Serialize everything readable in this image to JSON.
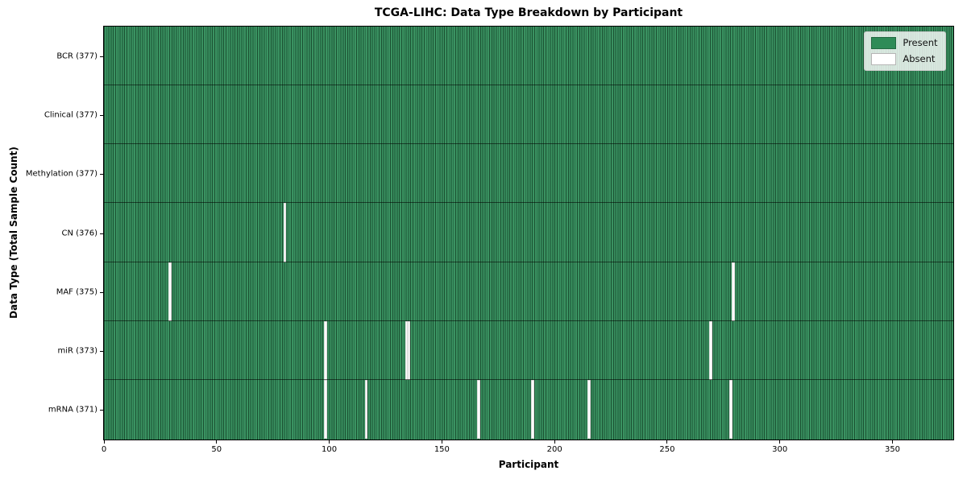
{
  "title": "TCGA-LIHC: Data Type Breakdown by Participant",
  "axes": {
    "xlabel": "Participant",
    "ylabel": "Data Type (Total Sample Count)"
  },
  "legend": {
    "items": [
      {
        "label": "Present",
        "color": "#2e8b57"
      },
      {
        "label": "Absent",
        "color": "#ffffff"
      }
    ]
  },
  "colors": {
    "present": "#2e8b57",
    "absent": "#ffffff",
    "cell_edge": "rgba(0,0,0,0.42)",
    "plot_border": "#000000"
  },
  "chart_data": {
    "type": "heatmap",
    "title": "TCGA-LIHC: Data Type Breakdown by Participant",
    "xlabel": "Participant",
    "ylabel": "Data Type (Total Sample Count)",
    "xlim": [
      0,
      377
    ],
    "x_ticks": [
      0,
      50,
      100,
      150,
      200,
      250,
      300,
      350
    ],
    "n_participants": 377,
    "grid": false,
    "legend_position": "upper right",
    "legend_entries": [
      "Present",
      "Absent"
    ],
    "categories": [
      "BCR (377)",
      "Clinical (377)",
      "Methylation (377)",
      "CN (376)",
      "MAF (375)",
      "miR (373)",
      "mRNA (371)"
    ],
    "rows": [
      {
        "label": "BCR (377)",
        "data_type": "BCR",
        "present_count": 377,
        "absent_count": 0,
        "absent_participants": []
      },
      {
        "label": "Clinical (377)",
        "data_type": "Clinical",
        "present_count": 377,
        "absent_count": 0,
        "absent_participants": []
      },
      {
        "label": "Methylation (377)",
        "data_type": "Methylation",
        "present_count": 377,
        "absent_count": 0,
        "absent_participants": []
      },
      {
        "label": "CN (376)",
        "data_type": "CN",
        "present_count": 376,
        "absent_count": 1,
        "absent_participants": [
          80
        ]
      },
      {
        "label": "MAF (375)",
        "data_type": "MAF",
        "present_count": 375,
        "absent_count": 2,
        "absent_participants": [
          29,
          279
        ]
      },
      {
        "label": "miR (373)",
        "data_type": "miR",
        "present_count": 373,
        "absent_count": 4,
        "absent_participants": [
          98,
          134,
          135,
          269
        ]
      },
      {
        "label": "mRNA (371)",
        "data_type": "mRNA",
        "present_count": 371,
        "absent_count": 6,
        "absent_participants": [
          98,
          116,
          166,
          190,
          215,
          278
        ]
      }
    ]
  }
}
